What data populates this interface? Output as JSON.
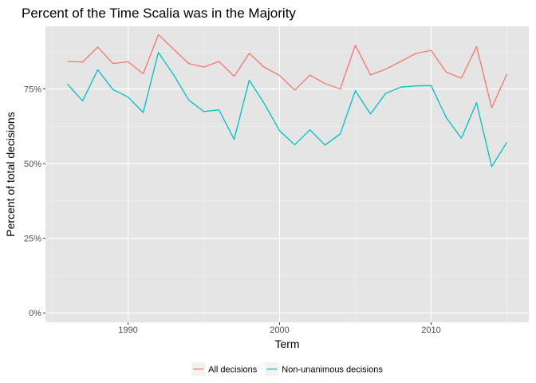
{
  "chart_data": {
    "type": "line",
    "title": "Percent of the Time Scalia was in the Majority",
    "xlabel": "Term",
    "ylabel": "Percent of total decisions",
    "x": [
      1986,
      1987,
      1988,
      1989,
      1990,
      1991,
      1992,
      1993,
      1994,
      1995,
      1996,
      1997,
      1998,
      1999,
      2000,
      2001,
      2002,
      2003,
      2004,
      2005,
      2006,
      2007,
      2008,
      2009,
      2010,
      2011,
      2012,
      2013,
      2014,
      2015
    ],
    "xlim": [
      1984.55,
      2016.45
    ],
    "ylim": [
      -0.0315,
      0.9595
    ],
    "x_ticks": [
      1990,
      2000,
      2010
    ],
    "x_tick_labels": [
      "1990",
      "2000",
      "2010"
    ],
    "y_ticks": [
      0,
      0.25,
      0.5,
      0.75
    ],
    "y_tick_labels": [
      "0%",
      "25%",
      "50%",
      "75%"
    ],
    "grid": true,
    "legend_position": "bottom",
    "series": [
      {
        "name": "All decisions",
        "color": "#F8766D",
        "values": [
          0.842,
          0.84,
          0.89,
          0.835,
          0.841,
          0.801,
          0.932,
          0.883,
          0.835,
          0.823,
          0.842,
          0.792,
          0.869,
          0.822,
          0.795,
          0.746,
          0.796,
          0.768,
          0.75,
          0.896,
          0.797,
          0.816,
          0.842,
          0.869,
          0.879,
          0.806,
          0.786,
          0.892,
          0.687,
          0.8
        ]
      },
      {
        "name": "Non-unanimous decisions",
        "color": "#00BFC4",
        "values": [
          0.766,
          0.71,
          0.814,
          0.748,
          0.723,
          0.671,
          0.872,
          0.798,
          0.713,
          0.674,
          0.68,
          0.581,
          0.779,
          0.7,
          0.61,
          0.563,
          0.613,
          0.562,
          0.599,
          0.744,
          0.666,
          0.735,
          0.756,
          0.76,
          0.761,
          0.654,
          0.585,
          0.704,
          0.49,
          0.571
        ]
      }
    ]
  }
}
